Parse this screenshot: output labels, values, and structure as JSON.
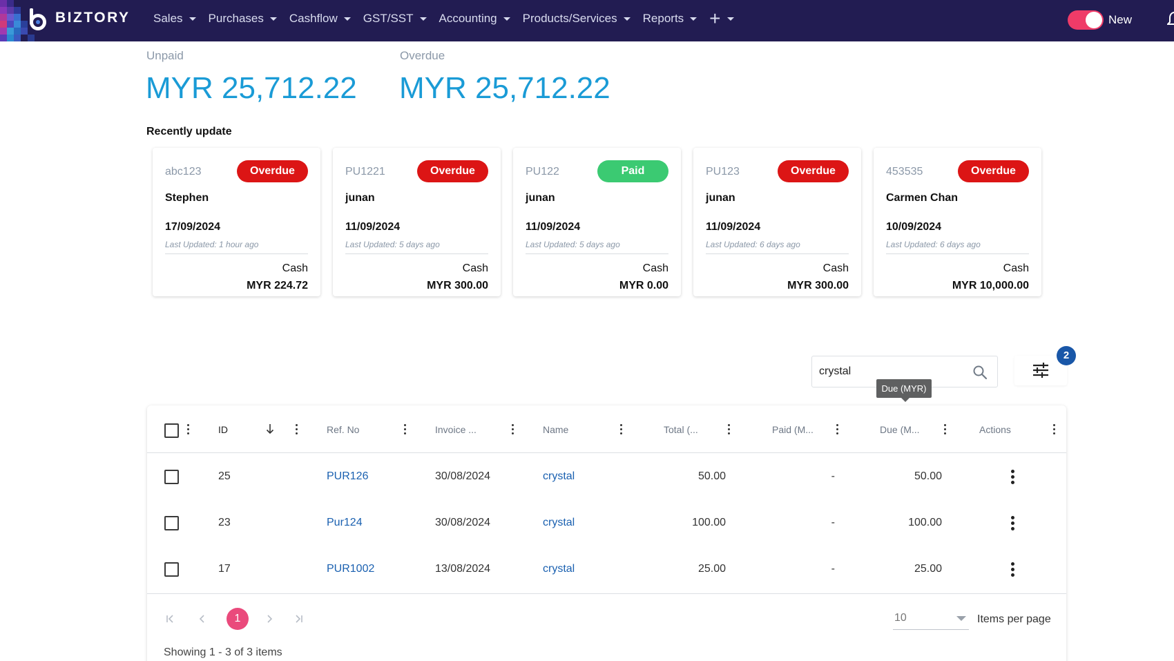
{
  "app": {
    "name": "BIZTORY"
  },
  "nav": {
    "items": [
      {
        "label": "Sales"
      },
      {
        "label": "Purchases"
      },
      {
        "label": "Cashflow"
      },
      {
        "label": "GST/SST"
      },
      {
        "label": "Accounting"
      },
      {
        "label": "Products/Services"
      },
      {
        "label": "Reports"
      }
    ],
    "plus_label": "+",
    "toggle_label": "New",
    "toggle_on": true
  },
  "summary": {
    "unpaid_label": "Unpaid",
    "unpaid_value": "MYR 25,712.22",
    "overdue_label": "Overdue",
    "overdue_value": "MYR 25,712.22"
  },
  "recent": {
    "title": "Recently update",
    "cards": [
      {
        "ref": "abc123",
        "status": "Overdue",
        "name": "Stephen",
        "date": "17/09/2024",
        "updated": "Last Updated: 1 hour ago",
        "method": "Cash",
        "amount": "MYR 224.72"
      },
      {
        "ref": "PU1221",
        "status": "Overdue",
        "name": "junan",
        "date": "11/09/2024",
        "updated": "Last Updated: 5 days ago",
        "method": "Cash",
        "amount": "MYR 300.00"
      },
      {
        "ref": "PU122",
        "status": "Paid",
        "name": "junan",
        "date": "11/09/2024",
        "updated": "Last Updated: 5 days ago",
        "method": "Cash",
        "amount": "MYR 0.00"
      },
      {
        "ref": "PU123",
        "status": "Overdue",
        "name": "junan",
        "date": "11/09/2024",
        "updated": "Last Updated: 6 days ago",
        "method": "Cash",
        "amount": "MYR 300.00"
      },
      {
        "ref": "453535",
        "status": "Overdue",
        "name": "Carmen Chan",
        "date": "10/09/2024",
        "updated": "Last Updated: 6 days ago",
        "method": "Cash",
        "amount": "MYR 10,000.00"
      }
    ]
  },
  "colors": {
    "overdue": "#dc1515",
    "paid": "#3bca72",
    "accent": "#1a9bd6",
    "nav_bg": "#221c52",
    "active_page": "#ea4a7c"
  },
  "search": {
    "value": "crystal"
  },
  "filter": {
    "count": "2",
    "tooltip": "Due (MYR)"
  },
  "table": {
    "columns": [
      "ID",
      "Ref. No",
      "Invoice ...",
      "Name",
      "Total (...",
      "Paid (M...",
      "Due (M...",
      "Actions"
    ],
    "rows": [
      {
        "id": "25",
        "ref": "PUR126",
        "date": "30/08/2024",
        "name": "crystal",
        "total": "50.00",
        "paid": "-",
        "due": "50.00"
      },
      {
        "id": "23",
        "ref": "Pur124",
        "date": "30/08/2024",
        "name": "crystal",
        "total": "100.00",
        "paid": "-",
        "due": "100.00"
      },
      {
        "id": "17",
        "ref": "PUR1002",
        "date": "13/08/2024",
        "name": "crystal",
        "total": "25.00",
        "paid": "-",
        "due": "25.00"
      }
    ]
  },
  "pagination": {
    "current_page": "1",
    "page_size": "10",
    "page_size_label": "Items per page",
    "showing": "Showing 1 - 3 of 3 items"
  }
}
